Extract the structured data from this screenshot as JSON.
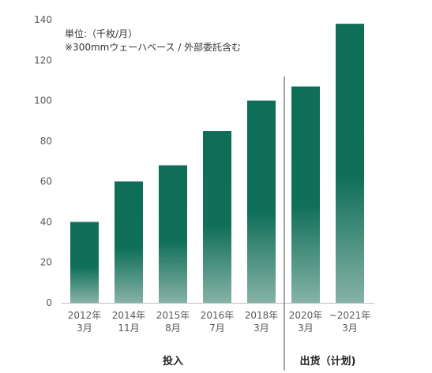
{
  "chart_data": {
    "type": "bar",
    "title": "",
    "xlabel": "",
    "ylabel": "",
    "ylim": [
      0,
      140
    ],
    "yticks": [
      0,
      20,
      40,
      60,
      80,
      100,
      120,
      140
    ],
    "grid": false,
    "legend": "none",
    "notes": [
      "単位:（千枚/月）",
      "※300mmウェーハベース / 外部委託含む"
    ],
    "categories": [
      [
        "2012年",
        "3月"
      ],
      [
        "2014年",
        "11月"
      ],
      [
        "2015年",
        "8月"
      ],
      [
        "2016年",
        "7月"
      ],
      [
        "2018年",
        "3月"
      ],
      [
        "2020年",
        "3月"
      ],
      [
        "~2021年",
        "3月"
      ]
    ],
    "values": [
      40,
      60,
      68,
      85,
      100,
      107,
      138
    ],
    "groups": [
      {
        "label": "投入",
        "categories": [
          0,
          1,
          2,
          3,
          4
        ]
      },
      {
        "label": "出货（计划)",
        "categories": [
          5,
          6
        ]
      }
    ],
    "colors": {
      "bar_top": "#0e6e58",
      "bar_bottom": "#86b2a6",
      "axis": "#bfbfbf",
      "divider": "#666666"
    }
  }
}
